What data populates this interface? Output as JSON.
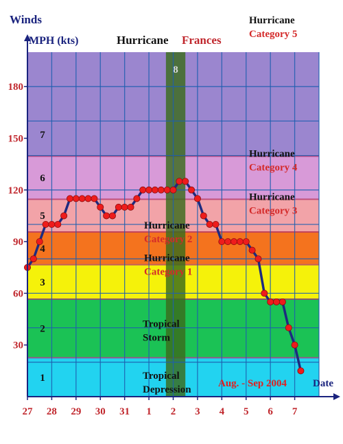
{
  "chart_data": {
    "type": "line",
    "title_part1": "Hurricane",
    "title_part2": "Frances",
    "ylabel_top": "Winds",
    "ylabel_unit": "MPH (kts)",
    "xlabel_note": "Aug. - Sep 2004",
    "xlabel": "Date",
    "ylim": [
      0,
      200
    ],
    "yticks": [
      30,
      60,
      90,
      120,
      150,
      180
    ],
    "xticks": [
      "27",
      "28",
      "29",
      "30",
      "31",
      "1",
      "2",
      "3",
      "4",
      "5",
      "6",
      "7"
    ],
    "grid": true,
    "bands": [
      {
        "level": "1",
        "from": 0,
        "to": 23,
        "line1": "Tropical",
        "line2": "Depression",
        "color": "#22d3f0"
      },
      {
        "level": "2",
        "from": 23,
        "to": 57,
        "line1": "Tropical",
        "line2": "Storm",
        "color": "#1bc255"
      },
      {
        "level": "3",
        "from": 57,
        "to": 77,
        "line1": "Hurricane",
        "line2": "Category 1",
        "color": "#f5f20a"
      },
      {
        "level": "4",
        "from": 77,
        "to": 96,
        "line1": "Hurricane",
        "line2": "Category 2",
        "color": "#f4731e"
      },
      {
        "level": "5",
        "from": 96,
        "to": 115,
        "line1": "Hurricane",
        "line2": "Category 3",
        "color": "#f2a3a8"
      },
      {
        "level": "6",
        "from": 115,
        "to": 140,
        "line1": "Hurricane",
        "line2": "Category 4",
        "color": "#d89ad8"
      },
      {
        "level": "7",
        "from": 140,
        "to": 200,
        "line1": "Hurricane",
        "line2": "Category 5",
        "color": "#9b86cf"
      }
    ],
    "highlight": {
      "label": "8",
      "x_from": 5.7,
      "x_to": 6.5,
      "color": "#3a6b1c"
    },
    "series": [
      {
        "x": [
          0,
          0.25,
          0.5,
          0.75,
          1.0,
          1.25,
          1.5,
          1.75,
          2.0,
          2.25,
          2.5,
          2.75,
          3.0,
          3.25,
          3.5,
          3.75,
          4.0,
          4.25,
          4.5,
          4.75,
          5.0,
          5.25,
          5.5,
          5.75,
          6.0,
          6.25,
          6.5,
          6.75,
          7.0,
          7.25,
          7.5,
          7.75,
          8.0,
          8.25,
          8.5,
          8.75,
          9.0,
          9.25,
          9.5,
          9.75,
          10.0,
          10.25,
          10.5,
          10.75,
          11.0,
          11.25
        ],
        "values": [
          75,
          80,
          90,
          100,
          100,
          100,
          105,
          115,
          115,
          115,
          115,
          115,
          110,
          105,
          105,
          110,
          110,
          110,
          115,
          120,
          120,
          120,
          120,
          120,
          120,
          125,
          125,
          120,
          115,
          105,
          100,
          100,
          90,
          90,
          90,
          90,
          90,
          85,
          80,
          60,
          55,
          55,
          55,
          40,
          30,
          15
        ],
        "line_color": "#1d2b80",
        "marker_color": "#ee1c1c"
      }
    ]
  }
}
